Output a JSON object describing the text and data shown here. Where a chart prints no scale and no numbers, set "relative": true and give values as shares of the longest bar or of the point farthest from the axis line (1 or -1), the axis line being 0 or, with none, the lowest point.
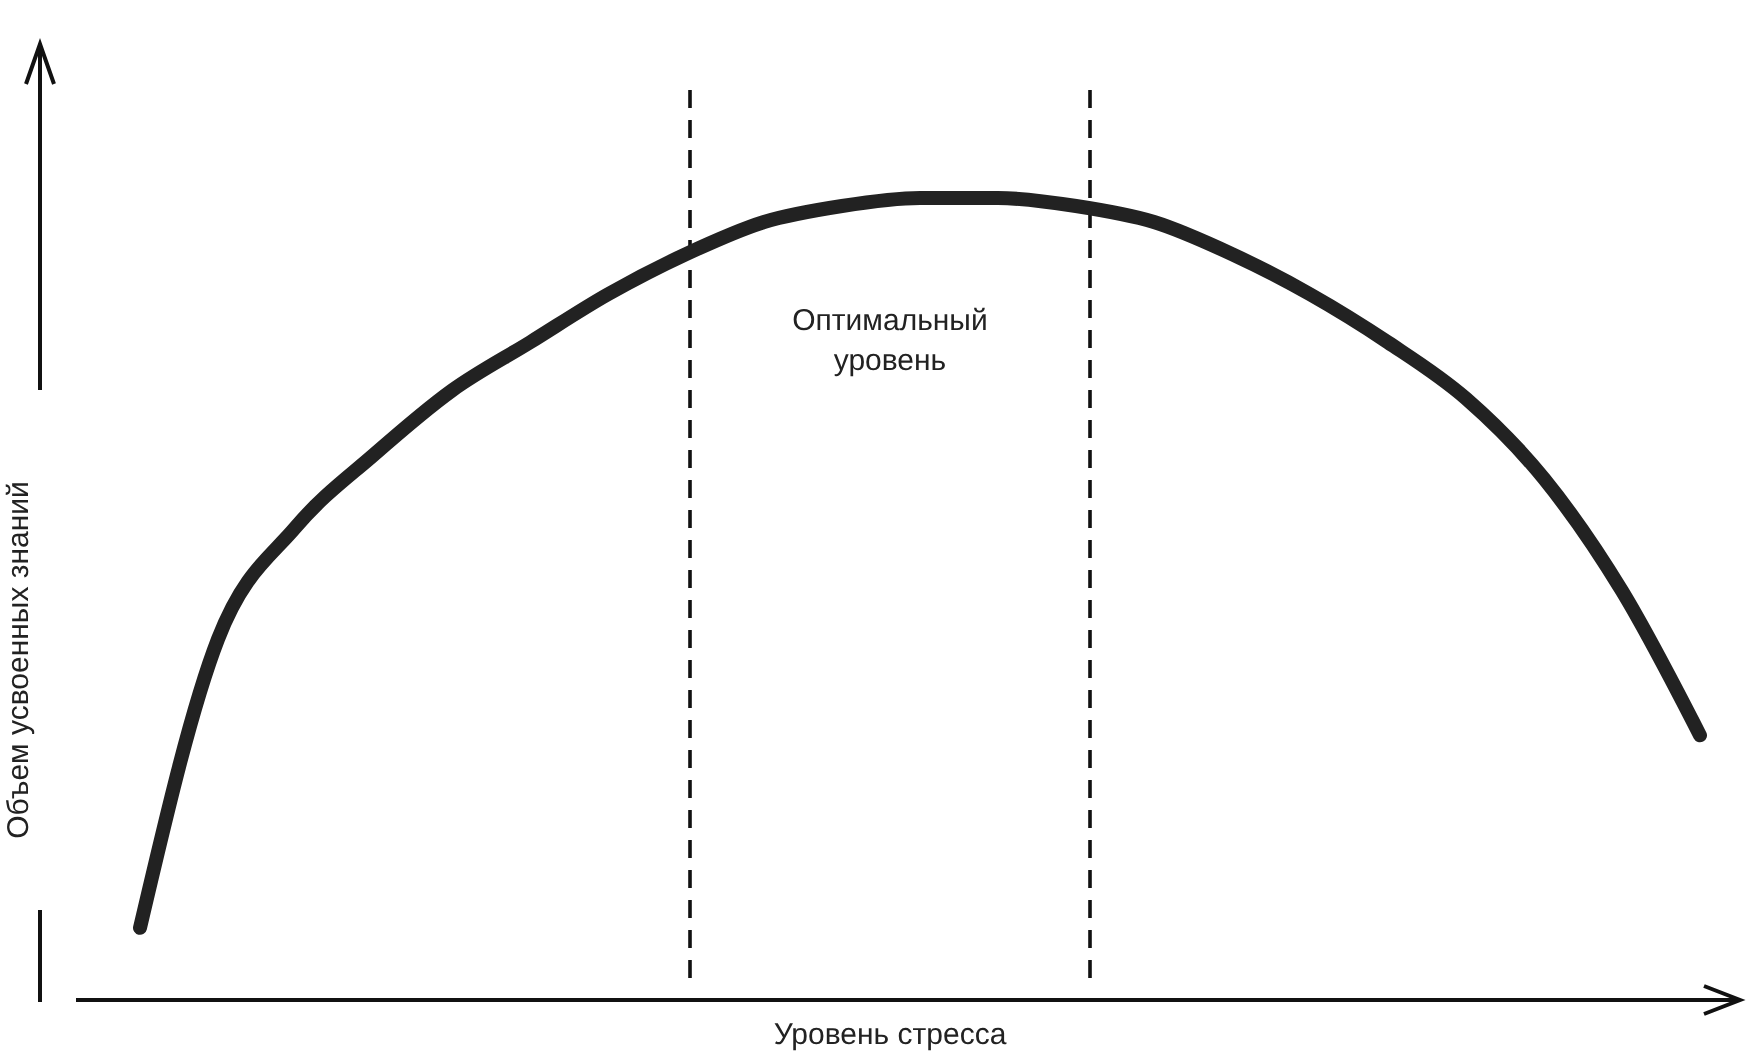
{
  "chart_data": {
    "type": "line",
    "relative": true,
    "xlabel": "Уровень стресса",
    "ylabel": "Объем усвоенных знаний",
    "categories": [
      null,
      null,
      null,
      null,
      null,
      null,
      null,
      null,
      null,
      null,
      null,
      null,
      null,
      null,
      null,
      null,
      null,
      null,
      null,
      null,
      null
    ],
    "series": [
      {
        "color": "#222222",
        "values": [
          0.09,
          0.45,
          0.59,
          0.68,
          0.76,
          0.82,
          0.88,
          0.93,
          0.97,
          0.99,
          1,
          1,
          0.99,
          0.97,
          0.93,
          0.88,
          0.82,
          0.75,
          0.65,
          0.51,
          0.33
        ]
      }
    ],
    "annotations": [
      "Оптимальный уровень"
    ],
    "line_style": "solid"
  }
}
